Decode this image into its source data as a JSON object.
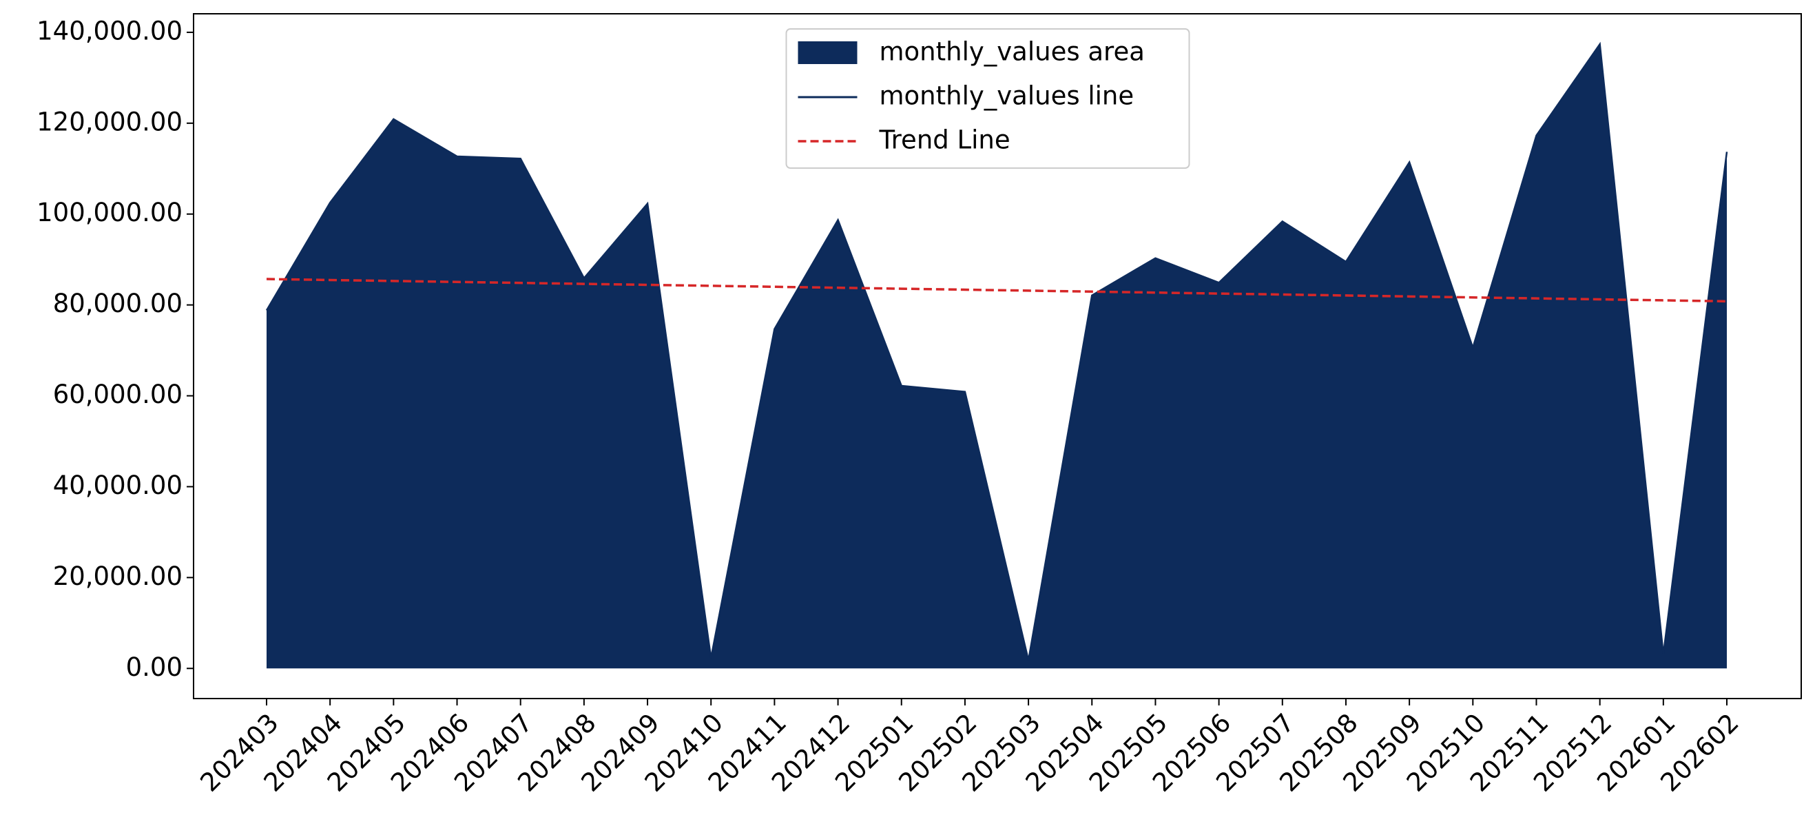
{
  "chart_data": {
    "type": "area",
    "categories": [
      "202403",
      "202404",
      "202405",
      "202406",
      "202407",
      "202408",
      "202409",
      "202410",
      "202411",
      "202412",
      "202501",
      "202502",
      "202503",
      "202504",
      "202505",
      "202506",
      "202507",
      "202508",
      "202509",
      "202510",
      "202511",
      "202512",
      "202601",
      "202602"
    ],
    "series": [
      {
        "name": "monthly_values area",
        "style": "area",
        "color": "#0d2b5b",
        "values": [
          78800,
          102500,
          120900,
          112700,
          112200,
          85900,
          102300,
          2300,
          74700,
          98700,
          62200,
          60900,
          1800,
          82100,
          90300,
          84900,
          98400,
          89500,
          111400,
          70600,
          117300,
          137400,
          3100,
          113700
        ]
      },
      {
        "name": "monthly_values line",
        "style": "line",
        "color": "#0d2b5b",
        "values": [
          78800,
          102500,
          120900,
          112700,
          112200,
          85900,
          102300,
          2300,
          74700,
          98700,
          62200,
          60900,
          1800,
          82100,
          90300,
          84900,
          98400,
          89500,
          111400,
          70600,
          117300,
          137400,
          3100,
          113700
        ]
      },
      {
        "name": "Trend Line",
        "style": "dashed",
        "color": "#d62728",
        "values": [
          85700,
          85487,
          85274,
          85061,
          84848,
          84635,
          84422,
          84209,
          83996,
          83783,
          83570,
          83357,
          83144,
          82931,
          82718,
          82505,
          82292,
          82079,
          81866,
          81653,
          81440,
          81227,
          81014,
          80801
        ]
      }
    ],
    "ylim": [
      -6630,
      144080
    ],
    "yticks": [
      {
        "value": 0,
        "label": "0.00"
      },
      {
        "value": 20000,
        "label": "20,000.00"
      },
      {
        "value": 40000,
        "label": "40,000.00"
      },
      {
        "value": 60000,
        "label": "60,000.00"
      },
      {
        "value": 80000,
        "label": "80,000.00"
      },
      {
        "value": 100000,
        "label": "100,000.00"
      },
      {
        "value": 120000,
        "label": "120,000.00"
      },
      {
        "value": 140000,
        "label": "140,000.00"
      }
    ],
    "legend": "upper center",
    "grid": false
  }
}
